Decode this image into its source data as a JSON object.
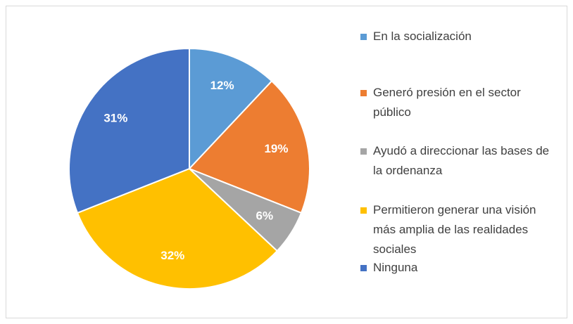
{
  "chart_data": {
    "type": "pie",
    "categories": [
      "En la socialización",
      "Generó presión en el sector público",
      "Ayudó a direccionar las bases de la ordenanza",
      "Permitieron generar una visión más amplia de las realidades sociales",
      "Ninguna"
    ],
    "values": [
      12,
      19,
      6,
      32,
      31
    ],
    "value_labels": [
      "12%",
      "19%",
      "6%",
      "32%",
      "31%"
    ],
    "colors": [
      "#5b9bd5",
      "#ed7d31",
      "#a5a5a5",
      "#ffc000",
      "#4472c4"
    ],
    "legend": "right"
  }
}
